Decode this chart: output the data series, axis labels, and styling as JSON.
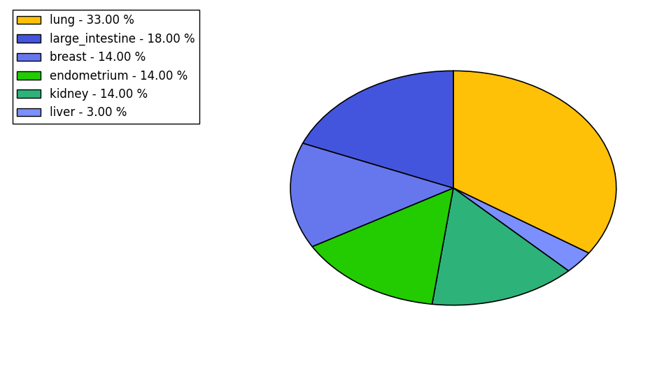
{
  "labels": [
    "lung",
    "liver",
    "kidney",
    "endometrium",
    "breast",
    "large_intestine"
  ],
  "values": [
    33.0,
    3.0,
    14.0,
    14.0,
    14.0,
    18.0
  ],
  "colors": [
    "#FFC107",
    "#7B8FFF",
    "#2DB37A",
    "#22CC00",
    "#6677EE",
    "#4455DD"
  ],
  "legend_labels": [
    "lung - 33.00 %",
    "large_intestine - 18.00 %",
    "breast - 14.00 %",
    "endometrium - 14.00 %",
    "kidney - 14.00 %",
    "liver - 3.00 %"
  ],
  "legend_colors": [
    "#FFC107",
    "#4455DD",
    "#6677EE",
    "#22CC00",
    "#2DB37A",
    "#7B8FFF"
  ],
  "startangle": 90,
  "figsize": [
    9.39,
    5.38
  ],
  "dpi": 100
}
